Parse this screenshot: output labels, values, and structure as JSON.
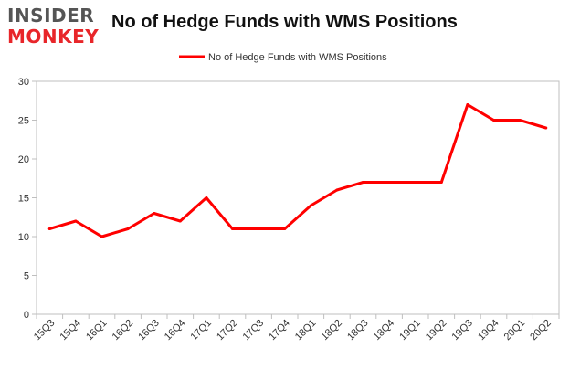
{
  "logo": {
    "line1": "INSIDER",
    "line2": "MONKEY"
  },
  "chart_data": {
    "type": "line",
    "title": "No of Hedge Funds with WMS Positions",
    "xlabel": "",
    "ylabel": "",
    "categories": [
      "15Q3",
      "15Q4",
      "16Q1",
      "16Q2",
      "16Q3",
      "16Q4",
      "17Q1",
      "17Q2",
      "17Q3",
      "17Q4",
      "18Q1",
      "18Q2",
      "18Q3",
      "18Q4",
      "19Q1",
      "19Q2",
      "19Q3",
      "19Q4",
      "20Q1",
      "20Q2"
    ],
    "series": [
      {
        "name": "No of Hedge Funds with WMS Positions",
        "values": [
          11,
          12,
          10,
          11,
          13,
          12,
          15,
          11,
          11,
          11,
          14,
          16,
          17,
          17,
          17,
          17,
          27,
          25,
          25,
          24
        ],
        "color": "#ff0000"
      }
    ],
    "ylim": [
      0,
      30
    ],
    "yticks": [
      0,
      5,
      10,
      15,
      20,
      25,
      30
    ],
    "grid": false,
    "legend_position": "top-center"
  }
}
